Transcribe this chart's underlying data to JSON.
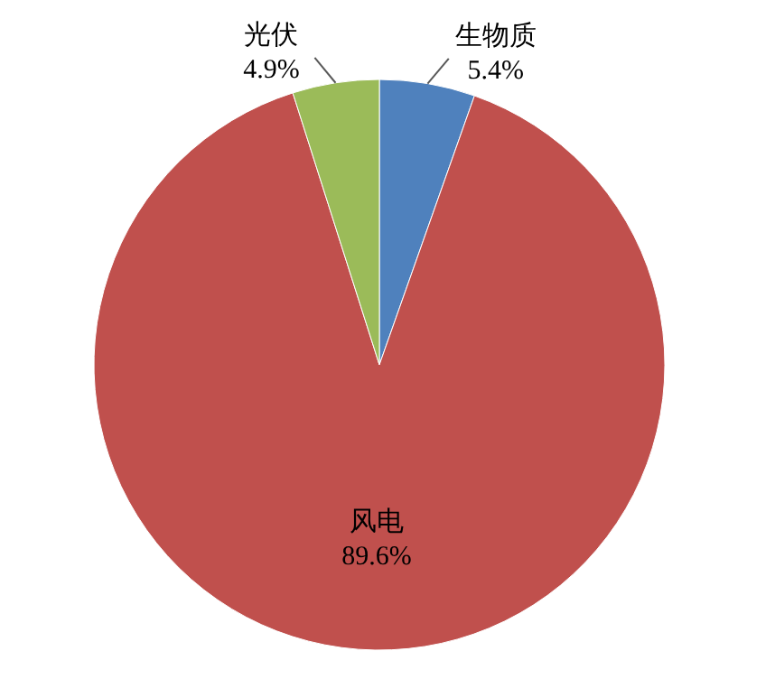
{
  "chart_data": {
    "type": "pie",
    "categories": [
      "生物质",
      "风电",
      "光伏"
    ],
    "values": [
      5.4,
      89.6,
      4.9
    ],
    "colors": [
      "#4f81bd",
      "#c0504d",
      "#9bbb59"
    ],
    "value_labels": [
      "5.4%",
      "89.6%",
      "4.9%"
    ]
  }
}
